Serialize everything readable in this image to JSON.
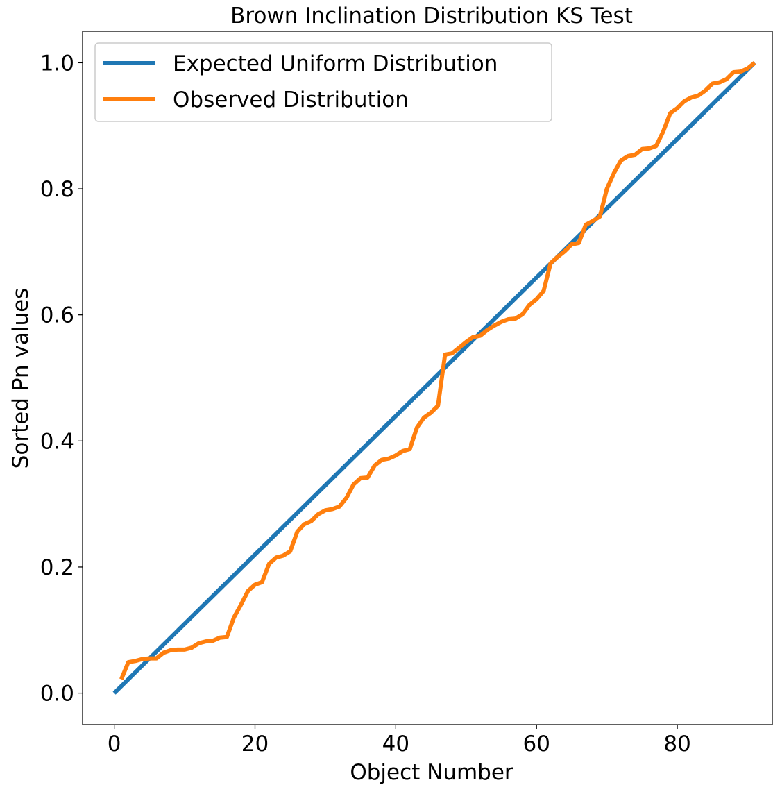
{
  "chart_data": {
    "type": "line",
    "title": "Brown Inclination Distribution KS Test",
    "xlabel": "Object Number",
    "ylabel": "Sorted Pn values",
    "xlim": [
      -4.5,
      93.5
    ],
    "ylim": [
      -0.05,
      1.05
    ],
    "xticks": [
      0,
      20,
      40,
      60,
      80
    ],
    "yticks": [
      0.0,
      0.2,
      0.4,
      0.6,
      0.8,
      1.0
    ],
    "xtick_labels": [
      "0",
      "20",
      "40",
      "60",
      "80"
    ],
    "ytick_labels": [
      "0.0",
      "0.2",
      "0.4",
      "0.6",
      "0.8",
      "1.0"
    ],
    "grid": false,
    "legend_position": "top-left",
    "series": [
      {
        "name": "Expected Uniform Distribution",
        "color": "#1f77b4",
        "x": [
          0,
          91
        ],
        "y": [
          0.0,
          1.0
        ]
      },
      {
        "name": "Observed Distribution",
        "color": "#ff7f0e",
        "x": [
          1,
          2,
          3,
          4,
          5,
          6,
          7,
          8,
          9,
          10,
          11,
          12,
          13,
          14,
          15,
          16,
          17,
          18,
          19,
          20,
          21,
          22,
          23,
          24,
          25,
          26,
          27,
          28,
          29,
          30,
          31,
          32,
          33,
          34,
          35,
          36,
          37,
          38,
          39,
          40,
          41,
          42,
          43,
          44,
          45,
          46,
          47,
          48,
          49,
          50,
          51,
          52,
          53,
          54,
          55,
          56,
          57,
          58,
          59,
          60,
          61,
          62,
          63,
          64,
          65,
          66,
          67,
          68,
          69,
          70,
          71,
          72,
          73,
          74,
          75,
          76,
          77,
          78,
          79,
          80,
          81,
          82,
          83,
          84,
          85,
          86,
          87,
          88,
          89,
          90,
          91
        ],
        "y": [
          0.022,
          0.049,
          0.051,
          0.054,
          0.055,
          0.055,
          0.064,
          0.068,
          0.069,
          0.069,
          0.072,
          0.079,
          0.082,
          0.083,
          0.088,
          0.089,
          0.12,
          0.14,
          0.162,
          0.172,
          0.176,
          0.205,
          0.215,
          0.218,
          0.225,
          0.256,
          0.268,
          0.273,
          0.284,
          0.29,
          0.292,
          0.296,
          0.31,
          0.331,
          0.341,
          0.342,
          0.361,
          0.37,
          0.372,
          0.377,
          0.384,
          0.387,
          0.421,
          0.437,
          0.445,
          0.456,
          0.537,
          0.539,
          0.548,
          0.557,
          0.565,
          0.567,
          0.576,
          0.583,
          0.589,
          0.593,
          0.594,
          0.601,
          0.616,
          0.625,
          0.638,
          0.682,
          0.692,
          0.701,
          0.712,
          0.714,
          0.743,
          0.749,
          0.756,
          0.8,
          0.825,
          0.845,
          0.852,
          0.854,
          0.863,
          0.864,
          0.868,
          0.891,
          0.92,
          0.928,
          0.939,
          0.945,
          0.948,
          0.956,
          0.967,
          0.969,
          0.974,
          0.985,
          0.986,
          0.991,
          1.0
        ]
      }
    ]
  }
}
